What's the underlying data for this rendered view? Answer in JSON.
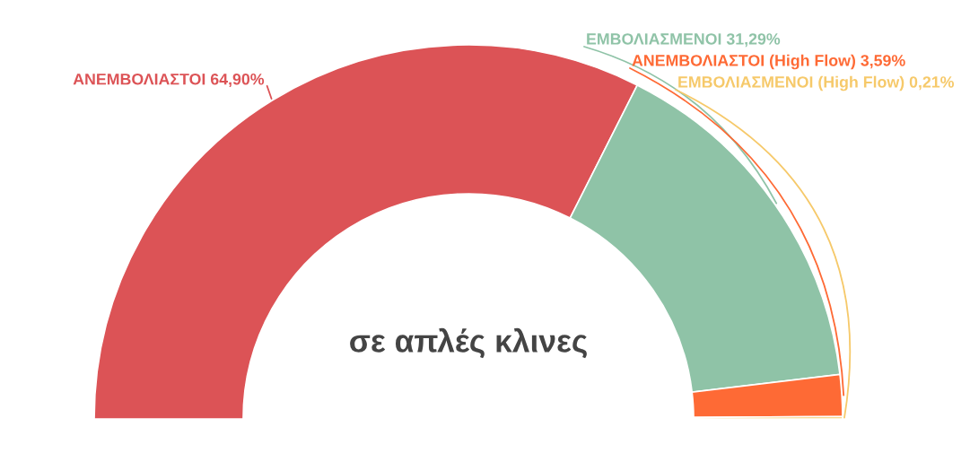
{
  "chart_data": {
    "type": "donut",
    "title": "σε απλές κλινες",
    "categories": [
      "ΑΝΕΜΒΟΛΙΑΣΤΟΙ",
      "ΕΜΒΟΛΙΑΣΜΕΝΟΙ",
      "ΑΝΕΜΒΟΛΙΑΣΤΟΙ (High Flow)",
      "ΕΜΒΟΛΙΑΣΜΕΝΟΙ (High Flow)"
    ],
    "values": [
      64.9,
      31.29,
      3.59,
      0.21
    ],
    "value_labels": [
      "64,90%",
      "31,29%",
      "3,59%",
      "0,21%"
    ],
    "colors": [
      "#dc5356",
      "#8fc3a7",
      "#fe6a35",
      "#f6c96a"
    ]
  }
}
